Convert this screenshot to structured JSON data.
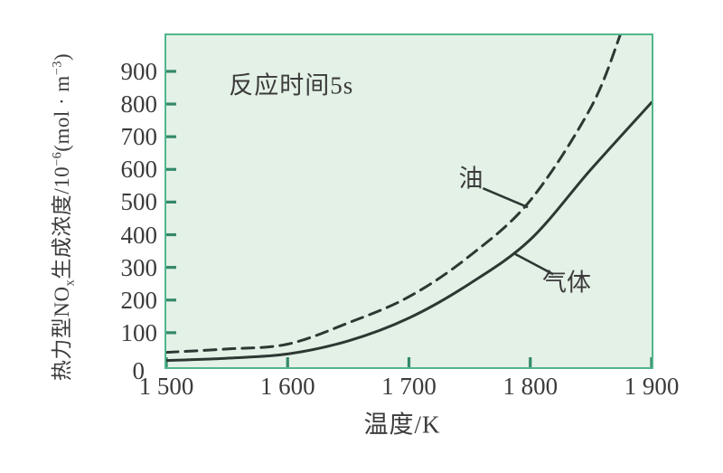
{
  "chart_data": {
    "type": "line",
    "title": "",
    "annotation": "反应时间5s",
    "xlabel": "温度/K",
    "ylabel": "热力型NOx生成浓度/10−6(mol · m−3)",
    "ylabel_segments": [
      {
        "t": "热力型NO"
      },
      {
        "t": "x",
        "s": "sub"
      },
      {
        "t": "生成浓度/10"
      },
      {
        "t": "−6",
        "s": "sup"
      },
      {
        "t": "(mol · m"
      },
      {
        "t": "−3",
        "s": "sup"
      },
      {
        "t": ")"
      }
    ],
    "xlim": [
      1500,
      1900
    ],
    "ylim": [
      0,
      1005
    ],
    "grid": false,
    "legend_position": "inline-labels",
    "x_ticks": {
      "values": [
        1500,
        1600,
        1700,
        1800,
        1900
      ],
      "labels": [
        "1 500",
        "1 600",
        "1 700",
        "1 800",
        "1 900"
      ]
    },
    "y_ticks": [
      0,
      100,
      200,
      300,
      400,
      500,
      600,
      700,
      800,
      900
    ],
    "series": [
      {
        "name": "气体",
        "style": "solid",
        "points": [
          [
            1500,
            15
          ],
          [
            1550,
            22
          ],
          [
            1600,
            35
          ],
          [
            1650,
            75
          ],
          [
            1700,
            145
          ],
          [
            1750,
            250
          ],
          [
            1800,
            385
          ],
          [
            1850,
            600
          ],
          [
            1900,
            805
          ]
        ]
      },
      {
        "name": "油",
        "style": "dashed",
        "points": [
          [
            1500,
            40
          ],
          [
            1550,
            50
          ],
          [
            1600,
            65
          ],
          [
            1650,
            130
          ],
          [
            1700,
            210
          ],
          [
            1750,
            335
          ],
          [
            1800,
            505
          ],
          [
            1850,
            790
          ],
          [
            1875,
            1020
          ]
        ]
      }
    ],
    "series_labels": [
      {
        "text": "油",
        "x": 1751,
        "y": 580,
        "leader": [
          [
            1761,
            542
          ],
          [
            1798,
            484
          ]
        ]
      },
      {
        "text": "气体",
        "x": 1830,
        "y": 260,
        "leader": [
          [
            1787,
            342
          ],
          [
            1819,
            279
          ]
        ]
      }
    ],
    "annotation_pos": {
      "x": 1603,
      "y": 864
    },
    "colors": {
      "plot_bg": "#e4f1e6",
      "border": "#52b68b",
      "tick": "#34896a",
      "curve": "#2d3833",
      "text": "#3b3b3b"
    }
  }
}
